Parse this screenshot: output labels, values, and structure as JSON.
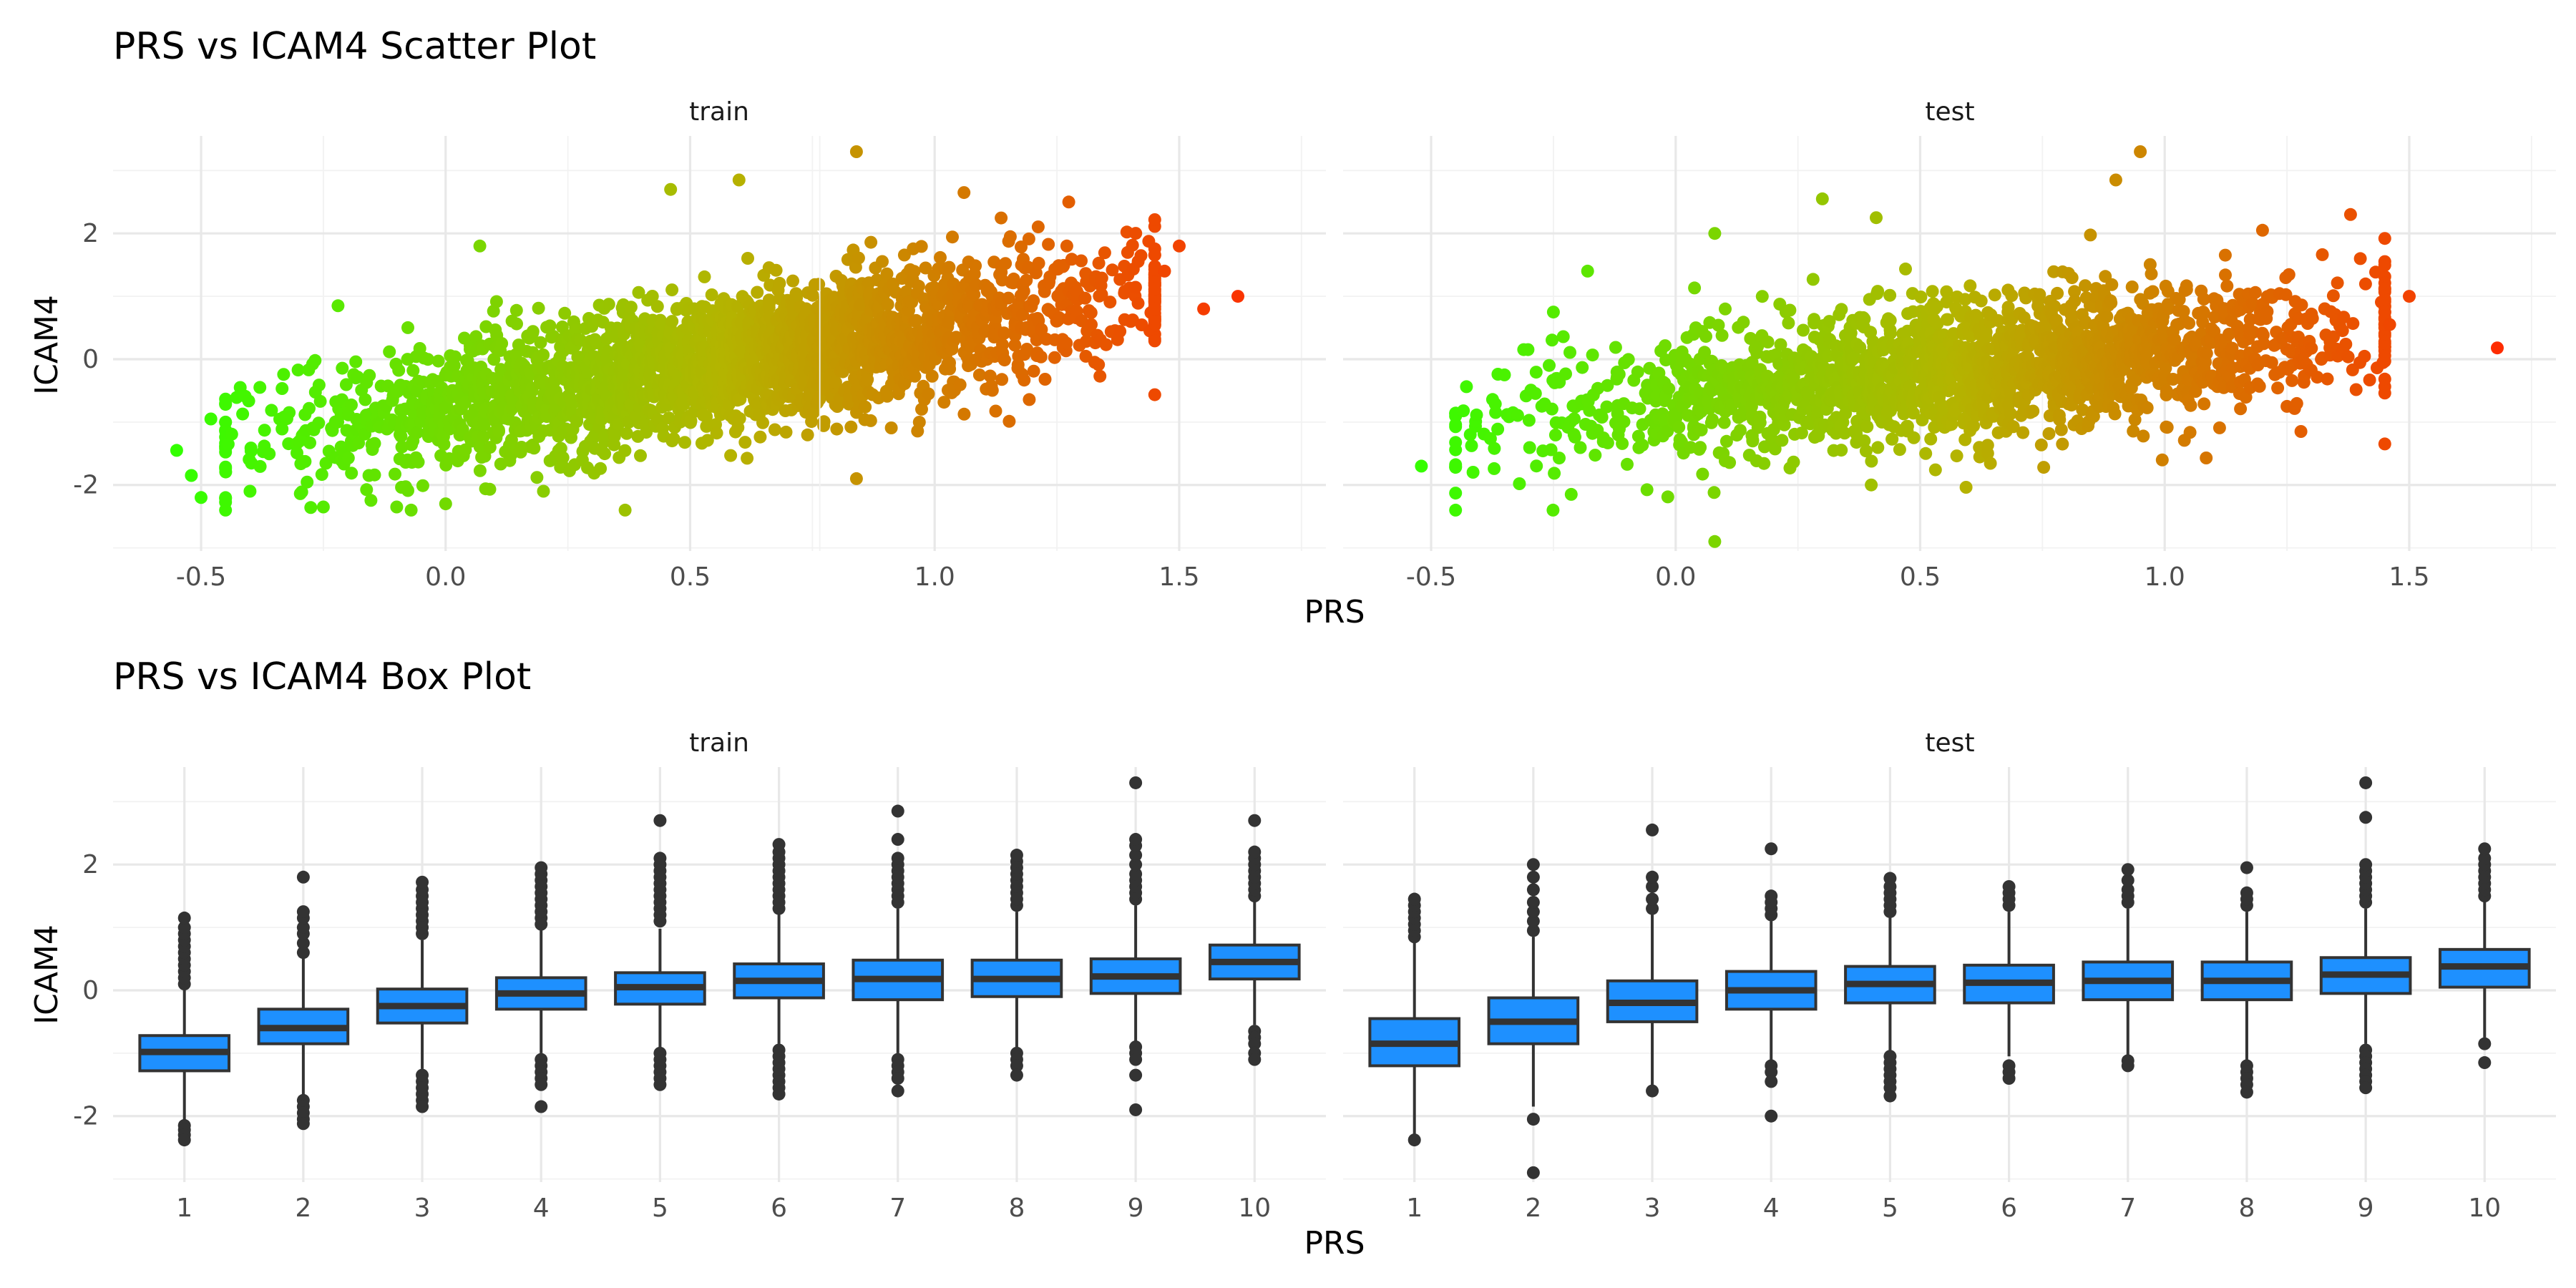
{
  "chart_data": [
    {
      "type": "scatter",
      "title": "PRS vs ICAM4 Scatter Plot",
      "xlabel": "PRS",
      "ylabel": "ICAM4",
      "xlim": [
        -0.68,
        1.8
      ],
      "ylim": [
        -3.05,
        3.55
      ],
      "x_ticks": [
        -0.5,
        0.0,
        0.5,
        1.0,
        1.5
      ],
      "x_tick_labels": [
        "-0.5",
        "0.0",
        "0.5",
        "1.0",
        "1.5"
      ],
      "y_ticks": [
        -2,
        0,
        2
      ],
      "y_tick_labels": [
        "-2",
        "0",
        "2"
      ],
      "grid": true,
      "color_scale": {
        "low": "#33ff00",
        "mid": "#b4b400",
        "high": "#ff2a00",
        "range": [
          -0.55,
          1.7
        ]
      },
      "facets": [
        {
          "label": "train",
          "trend": {
            "slope": 1.2,
            "intercept": -0.72,
            "spread": 0.55
          },
          "n_points": 2600,
          "points": [
            {
              "x": -0.55,
              "y": -1.45
            },
            {
              "x": -0.52,
              "y": -1.85
            },
            {
              "x": -0.5,
              "y": -2.2
            },
            {
              "x": -0.48,
              "y": -0.95
            },
            {
              "x": -0.42,
              "y": -0.45
            },
            {
              "x": -0.4,
              "y": -2.1
            },
            {
              "x": -0.25,
              "y": -2.35
            },
            {
              "x": -0.22,
              "y": 0.85
            },
            {
              "x": -0.1,
              "y": -2.35
            },
            {
              "x": 0.0,
              "y": -2.3
            },
            {
              "x": 0.07,
              "y": 1.8
            },
            {
              "x": 0.2,
              "y": -2.1
            },
            {
              "x": 0.46,
              "y": 2.7
            },
            {
              "x": 0.6,
              "y": 2.85
            },
            {
              "x": 0.84,
              "y": 3.3
            },
            {
              "x": 0.84,
              "y": -1.9
            },
            {
              "x": 1.06,
              "y": 2.65
            },
            {
              "x": 1.5,
              "y": 1.8
            },
            {
              "x": 1.55,
              "y": 0.8
            },
            {
              "x": 1.62,
              "y": 1.0
            },
            {
              "x": 1.44,
              "y": 0.45
            },
            {
              "x": 1.47,
              "y": 1.4
            }
          ]
        },
        {
          "label": "test",
          "trend": {
            "slope": 0.75,
            "intercept": -0.6,
            "spread": 0.55
          },
          "n_points": 1900,
          "points": [
            {
              "x": -0.52,
              "y": -1.7
            },
            {
              "x": -0.45,
              "y": -2.4
            },
            {
              "x": -0.42,
              "y": -1.2
            },
            {
              "x": -0.35,
              "y": -0.25
            },
            {
              "x": -0.25,
              "y": 0.75
            },
            {
              "x": -0.18,
              "y": 1.4
            },
            {
              "x": 0.08,
              "y": 2.0
            },
            {
              "x": 0.08,
              "y": -2.9
            },
            {
              "x": 0.3,
              "y": 2.55
            },
            {
              "x": 0.4,
              "y": -2.0
            },
            {
              "x": 0.41,
              "y": 2.25
            },
            {
              "x": 0.9,
              "y": 2.85
            },
            {
              "x": 0.95,
              "y": 3.3
            },
            {
              "x": 1.25,
              "y": -0.75
            },
            {
              "x": 1.38,
              "y": 2.3
            },
            {
              "x": 1.5,
              "y": 1.0
            },
            {
              "x": 1.46,
              "y": 0.55
            },
            {
              "x": 1.68,
              "y": 0.18
            },
            {
              "x": 1.2,
              "y": 2.05
            }
          ]
        }
      ]
    },
    {
      "type": "box",
      "title": "PRS vs ICAM4 Box Plot",
      "xlabel": "PRS",
      "ylabel": "ICAM4",
      "categories": [
        "1",
        "2",
        "3",
        "4",
        "5",
        "6",
        "7",
        "8",
        "9",
        "10"
      ],
      "ylim": [
        -3.05,
        3.55
      ],
      "y_ticks": [
        -2,
        0,
        2
      ],
      "y_tick_labels": [
        "-2",
        "0",
        "2"
      ],
      "grid": true,
      "box_color": "#1e90ff",
      "line_color": "#333333",
      "facets": [
        {
          "label": "train",
          "boxes": [
            {
              "category": "1",
              "q1": -1.28,
              "median": -0.98,
              "q3": -0.72,
              "whisker_low": -2.1,
              "whisker_high": 0.0,
              "outliers": [
                -2.15,
                -2.22,
                -2.3,
                -2.38,
                0.1,
                0.2,
                0.3,
                0.4,
                0.5,
                0.6,
                0.7,
                0.8,
                0.9,
                1.0,
                1.15
              ]
            },
            {
              "category": "2",
              "q1": -0.85,
              "median": -0.6,
              "q3": -0.3,
              "whisker_low": -1.65,
              "whisker_high": 0.5,
              "outliers": [
                -1.75,
                -1.85,
                -1.95,
                -2.05,
                -2.12,
                0.6,
                0.75,
                0.9,
                1.0,
                1.15,
                1.25,
                1.8
              ]
            },
            {
              "category": "3",
              "q1": -0.52,
              "median": -0.25,
              "q3": 0.02,
              "whisker_low": -1.25,
              "whisker_high": 0.8,
              "outliers": [
                -1.35,
                -1.45,
                -1.55,
                -1.65,
                -1.75,
                -1.85,
                0.9,
                1.0,
                1.1,
                1.2,
                1.3,
                1.4,
                1.5,
                1.6,
                1.72
              ]
            },
            {
              "category": "4",
              "q1": -0.3,
              "median": -0.05,
              "q3": 0.2,
              "whisker_low": -1.0,
              "whisker_high": 0.95,
              "outliers": [
                -1.1,
                -1.2,
                -1.3,
                -1.4,
                -1.5,
                -1.85,
                1.05,
                1.15,
                1.25,
                1.35,
                1.45,
                1.55,
                1.65,
                1.75,
                1.85,
                1.95
              ]
            },
            {
              "category": "5",
              "q1": -0.22,
              "median": 0.05,
              "q3": 0.28,
              "whisker_low": -0.9,
              "whisker_high": 0.98,
              "outliers": [
                -1.0,
                -1.1,
                -1.2,
                -1.3,
                -1.4,
                -1.5,
                1.1,
                1.2,
                1.3,
                1.4,
                1.5,
                1.6,
                1.7,
                1.8,
                1.9,
                2.0,
                2.1,
                2.7
              ]
            },
            {
              "category": "6",
              "q1": -0.12,
              "median": 0.15,
              "q3": 0.42,
              "whisker_low": -0.85,
              "whisker_high": 1.2,
              "outliers": [
                -0.95,
                -1.05,
                -1.15,
                -1.25,
                -1.35,
                -1.45,
                -1.55,
                -1.65,
                1.3,
                1.4,
                1.5,
                1.6,
                1.7,
                1.8,
                1.9,
                2.0,
                2.1,
                2.2,
                2.32
              ]
            },
            {
              "category": "7",
              "q1": -0.15,
              "median": 0.18,
              "q3": 0.48,
              "whisker_low": -1.0,
              "whisker_high": 1.3,
              "outliers": [
                -1.1,
                -1.2,
                -1.3,
                -1.4,
                -1.6,
                1.4,
                1.5,
                1.6,
                1.7,
                1.8,
                1.9,
                2.0,
                2.1,
                2.4,
                2.85
              ]
            },
            {
              "category": "8",
              "q1": -0.1,
              "median": 0.18,
              "q3": 0.48,
              "whisker_low": -0.9,
              "whisker_high": 1.25,
              "outliers": [
                -1.0,
                -1.1,
                -1.2,
                -1.35,
                1.35,
                1.45,
                1.55,
                1.65,
                1.75,
                1.85,
                1.95,
                2.05,
                2.15
              ]
            },
            {
              "category": "9",
              "q1": -0.05,
              "median": 0.22,
              "q3": 0.5,
              "whisker_low": -0.85,
              "whisker_high": 1.35,
              "outliers": [
                -0.9,
                -1.0,
                -1.1,
                -1.35,
                -1.9,
                1.45,
                1.55,
                1.65,
                1.75,
                1.85,
                2.0,
                2.15,
                2.3,
                2.4,
                3.3
              ]
            },
            {
              "category": "10",
              "q1": 0.18,
              "median": 0.45,
              "q3": 0.72,
              "whisker_low": -0.55,
              "whisker_high": 1.4,
              "outliers": [
                -0.65,
                -0.75,
                -0.85,
                -1.0,
                -1.1,
                1.5,
                1.6,
                1.7,
                1.8,
                1.9,
                2.0,
                2.1,
                2.2,
                2.7
              ]
            }
          ]
        },
        {
          "label": "test",
          "boxes": [
            {
              "category": "1",
              "q1": -1.2,
              "median": -0.85,
              "q3": -0.45,
              "whisker_low": -2.35,
              "whisker_high": 0.75,
              "outliers": [
                0.85,
                0.95,
                1.05,
                1.15,
                1.25,
                1.35,
                1.45,
                -2.38
              ]
            },
            {
              "category": "2",
              "q1": -0.85,
              "median": -0.5,
              "q3": -0.12,
              "whisker_low": -1.85,
              "whisker_high": 0.85,
              "outliers": [
                0.95,
                1.1,
                1.25,
                1.4,
                1.6,
                1.8,
                2.0,
                -2.05,
                -2.9
              ]
            },
            {
              "category": "3",
              "q1": -0.5,
              "median": -0.2,
              "q3": 0.15,
              "whisker_low": -1.55,
              "whisker_high": 1.2,
              "outliers": [
                1.3,
                1.45,
                1.65,
                1.8,
                2.55,
                -1.6
              ]
            },
            {
              "category": "4",
              "q1": -0.3,
              "median": 0.0,
              "q3": 0.3,
              "whisker_low": -1.15,
              "whisker_high": 1.1,
              "outliers": [
                1.2,
                1.3,
                1.4,
                1.5,
                2.25,
                -1.2,
                -1.3,
                -1.45,
                -2.0
              ]
            },
            {
              "category": "5",
              "q1": -0.2,
              "median": 0.1,
              "q3": 0.38,
              "whisker_low": -0.95,
              "whisker_high": 1.15,
              "outliers": [
                1.25,
                1.35,
                1.45,
                1.55,
                1.65,
                1.78,
                -1.05,
                -1.15,
                -1.25,
                -1.35,
                -1.45,
                -1.55,
                -1.68
              ]
            },
            {
              "category": "6",
              "q1": -0.2,
              "median": 0.12,
              "q3": 0.4,
              "whisker_low": -1.05,
              "whisker_high": 1.25,
              "outliers": [
                1.35,
                1.45,
                1.55,
                1.65,
                -1.2,
                -1.3,
                -1.4
              ]
            },
            {
              "category": "7",
              "q1": -0.15,
              "median": 0.15,
              "q3": 0.45,
              "whisker_low": -1.05,
              "whisker_high": 1.3,
              "outliers": [
                1.4,
                1.5,
                1.6,
                1.75,
                1.92,
                -1.12,
                -1.2
              ]
            },
            {
              "category": "8",
              "q1": -0.15,
              "median": 0.15,
              "q3": 0.45,
              "whisker_low": -1.1,
              "whisker_high": 1.25,
              "outliers": [
                1.35,
                1.45,
                1.55,
                1.95,
                -1.2,
                -1.3,
                -1.4,
                -1.5,
                -1.62
              ]
            },
            {
              "category": "9",
              "q1": -0.05,
              "median": 0.25,
              "q3": 0.52,
              "whisker_low": -0.85,
              "whisker_high": 1.3,
              "outliers": [
                1.4,
                1.5,
                1.6,
                1.7,
                1.8,
                1.9,
                2.0,
                2.75,
                3.3,
                -0.95,
                -1.05,
                -1.15,
                -1.25,
                -1.35,
                -1.45,
                -1.55
              ]
            },
            {
              "category": "10",
              "q1": 0.05,
              "median": 0.38,
              "q3": 0.65,
              "whisker_low": -0.75,
              "whisker_high": 1.4,
              "outliers": [
                1.5,
                1.6,
                1.7,
                1.8,
                1.9,
                2.0,
                2.1,
                2.25,
                -0.85,
                -1.15
              ]
            }
          ]
        }
      ]
    }
  ]
}
